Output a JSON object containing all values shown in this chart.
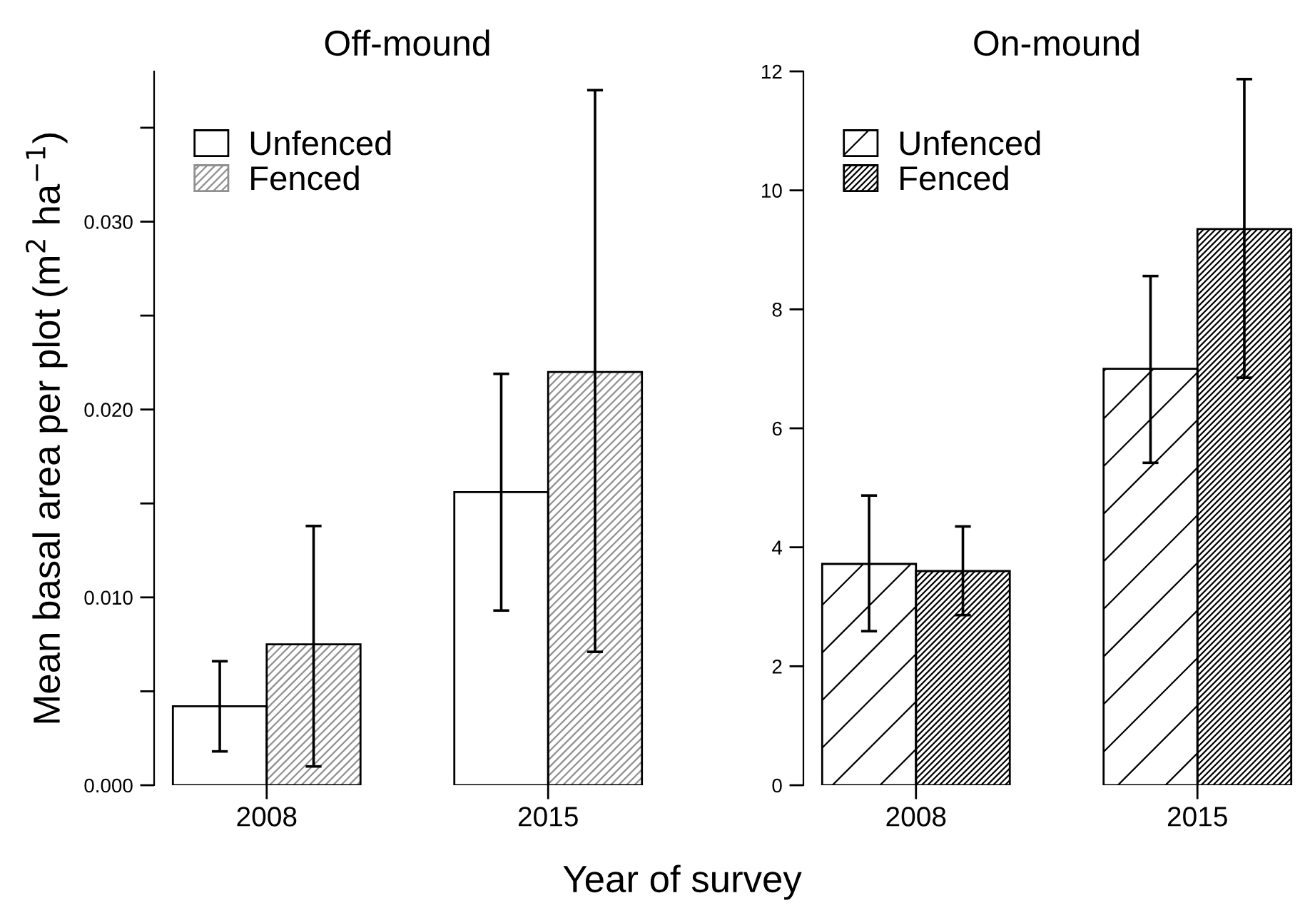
{
  "chart_data": [
    {
      "type": "bar",
      "title": "Off-mound",
      "xlabel": "Year of survey",
      "ylabel": "Mean basal area per plot (m$^{2}$ ha$^{−1}$)",
      "categories": [
        "2008",
        "2015"
      ],
      "series": [
        {
          "name": "Unfenced",
          "color": "#ffffff",
          "values": [
            0.0042,
            0.0156
          ],
          "errors": [
            [
              0.0018,
              0.0066
            ],
            [
              0.0093,
              0.0219
            ]
          ]
        },
        {
          "name": "Fenced",
          "color": "#ffffff",
          "values": [
            0.0075,
            0.022
          ],
          "errors": [
            [
              0.001,
              0.0138
            ],
            [
              0.0071,
              0.037
            ]
          ]
        }
      ],
      "ylim": [
        0,
        0.038
      ],
      "yticks": [
        {
          "value": 0,
          "label": "0.000"
        },
        {
          "value": 0.005,
          "label": null
        },
        {
          "value": 0.01,
          "label": "0.010"
        },
        {
          "value": 0.015,
          "label": null
        },
        {
          "value": 0.02,
          "label": "0.020"
        },
        {
          "value": 0.025,
          "label": null
        },
        {
          "value": 0.03,
          "label": "0.030"
        },
        {
          "value": 0.035,
          "label": null
        }
      ],
      "legend": "top left",
      "grid": false
    },
    {
      "type": "bar",
      "title": "On-mound",
      "categories": [
        "2008",
        "2015"
      ],
      "series": [
        {
          "name": "Unfenced",
          "color": "#ffffff",
          "values": [
            3.72,
            7.0
          ],
          "errors": [
            [
              2.59,
              4.87
            ],
            [
              5.42,
              8.56
            ]
          ]
        },
        {
          "name": "Fenced",
          "color": "#ffffff",
          "values": [
            3.6,
            9.35
          ],
          "errors": [
            [
              2.86,
              4.35
            ],
            [
              6.85,
              11.87
            ]
          ]
        }
      ],
      "ylim": [
        0,
        12
      ],
      "yticks": [
        0,
        2,
        4,
        6,
        8,
        10,
        12
      ],
      "legend": "top left",
      "grid": false
    }
  ]
}
